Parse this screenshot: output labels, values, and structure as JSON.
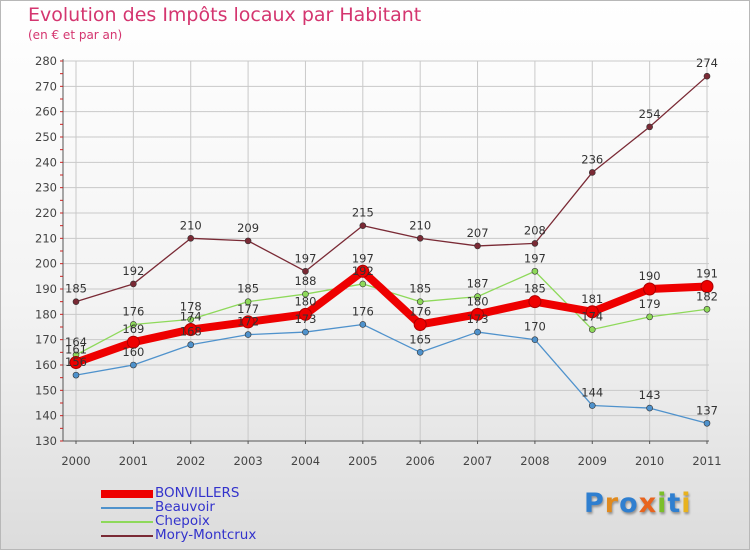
{
  "header": {
    "title": "Evolution des Impôts locaux par Habitant",
    "subtitle": "(en € et par an)"
  },
  "logo": {
    "text": "Proxiti",
    "letter_colors": [
      "#2f7fd0",
      "#e08a1e",
      "#2f7fd0",
      "#e8641e",
      "#7bbf2a",
      "#2f7fd0",
      "#e8b21e"
    ]
  },
  "colors": {
    "title": "#d4356f",
    "legend_text": "#3333cc",
    "grid": "#c9c9c9",
    "axis": "#555555"
  },
  "chart_data": {
    "type": "line",
    "title": "Evolution des Impôts locaux par Habitant",
    "subtitle": "(en € et par an)",
    "x": [
      "2000",
      "2001",
      "2002",
      "2003",
      "2004",
      "2005",
      "2006",
      "2007",
      "2008",
      "2009",
      "2010",
      "2011"
    ],
    "ylim": [
      130,
      280
    ],
    "yticks": [
      130,
      140,
      150,
      160,
      170,
      180,
      190,
      200,
      210,
      220,
      230,
      240,
      250,
      260,
      270,
      280
    ],
    "grid": true,
    "legend_position": "bottom-left",
    "series": [
      {
        "name": "BONVILLERS",
        "color": "#ee0000",
        "width": 8,
        "marker": 6,
        "values": [
          161,
          169,
          174,
          177,
          180,
          197,
          176,
          180,
          185,
          181,
          190,
          191
        ],
        "labels": [
          "161",
          "169",
          "174",
          "177",
          "180",
          "197",
          "176",
          "180",
          "185",
          "181",
          "190",
          "191"
        ]
      },
      {
        "name": "Beauvoir",
        "color": "#4f92cc",
        "width": 1.3,
        "marker": 3,
        "values": [
          156,
          160,
          168,
          172,
          173,
          176,
          165,
          173,
          170,
          144,
          143,
          137
        ],
        "labels": [
          "156",
          "160",
          "168",
          "172",
          "173",
          "176",
          "165",
          "173",
          "170",
          "144",
          "143",
          "137"
        ]
      },
      {
        "name": "Chepoix",
        "color": "#8ed95a",
        "width": 1.3,
        "marker": 3,
        "values": [
          164,
          176,
          178,
          185,
          188,
          192,
          185,
          187,
          197,
          174,
          179,
          182
        ],
        "labels": [
          "164",
          "176",
          "178",
          "185",
          "188",
          "192",
          "185",
          "187",
          "197",
          "174",
          "179",
          "182"
        ]
      },
      {
        "name": "Mory-Montcrux",
        "color": "#7a2a35",
        "width": 1.3,
        "marker": 3,
        "values": [
          185,
          192,
          210,
          209,
          197,
          215,
          210,
          207,
          208,
          236,
          254,
          274
        ],
        "labels": [
          "185",
          "192",
          "210",
          "209",
          "197",
          "215",
          "210",
          "207",
          "208",
          "236",
          "254",
          "274"
        ]
      }
    ]
  }
}
